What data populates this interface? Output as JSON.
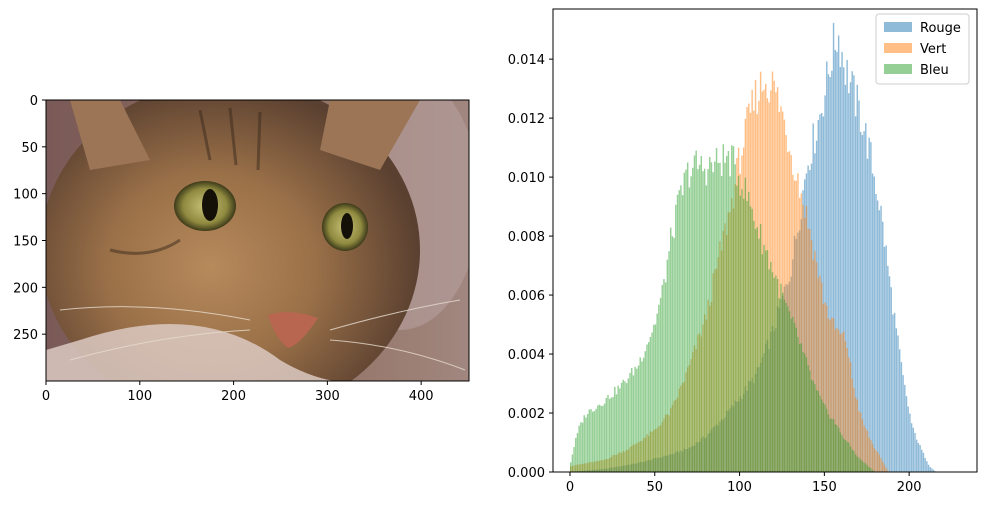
{
  "chart_data": [
    {
      "type": "image",
      "content": "photo of a tabby cat face",
      "xlim": [
        0,
        451
      ],
      "ylim": [
        300,
        0
      ],
      "xticks": [
        0,
        100,
        200,
        300,
        400
      ],
      "yticks": [
        0,
        50,
        100,
        150,
        200,
        250
      ]
    },
    {
      "type": "bar",
      "subtype": "histogram",
      "xlim": [
        -10,
        240
      ],
      "ylim": [
        0,
        0.0157
      ],
      "xticks": [
        0,
        50,
        100,
        150,
        200
      ],
      "yticks": [
        "0.000",
        "0.002",
        "0.004",
        "0.006",
        "0.008",
        "0.010",
        "0.012",
        "0.014"
      ],
      "legend_position": "top-right",
      "series": [
        {
          "name": "Rouge",
          "color": "#1f77b4",
          "alpha": 0.5,
          "control_points": [
            [
              0,
              0
            ],
            [
              20,
              0.0001
            ],
            [
              40,
              0.0003
            ],
            [
              60,
              0.0006
            ],
            [
              70,
              0.0008
            ],
            [
              80,
              0.0012
            ],
            [
              90,
              0.0018
            ],
            [
              100,
              0.0025
            ],
            [
              110,
              0.0033
            ],
            [
              120,
              0.0048
            ],
            [
              130,
              0.0068
            ],
            [
              135,
              0.0085
            ],
            [
              140,
              0.0105
            ],
            [
              145,
              0.0115
            ],
            [
              150,
              0.0128
            ],
            [
              155,
              0.0143
            ],
            [
              158,
              0.0149
            ],
            [
              162,
              0.0138
            ],
            [
              168,
              0.0127
            ],
            [
              173,
              0.0118
            ],
            [
              178,
              0.0105
            ],
            [
              183,
              0.009
            ],
            [
              187,
              0.0072
            ],
            [
              192,
              0.005
            ],
            [
              197,
              0.003
            ],
            [
              202,
              0.0015
            ],
            [
              207,
              0.0008
            ],
            [
              212,
              0.0002
            ],
            [
              216,
              0
            ]
          ]
        },
        {
          "name": "Vert",
          "color": "#ff7f0e",
          "alpha": 0.5,
          "control_points": [
            [
              0,
              0.0002
            ],
            [
              10,
              0.0003
            ],
            [
              20,
              0.0004
            ],
            [
              35,
              0.0008
            ],
            [
              50,
              0.0014
            ],
            [
              60,
              0.0021
            ],
            [
              70,
              0.0035
            ],
            [
              80,
              0.0052
            ],
            [
              90,
              0.0078
            ],
            [
              95,
              0.009
            ],
            [
              100,
              0.0106
            ],
            [
              105,
              0.0118
            ],
            [
              110,
              0.0128
            ],
            [
              115,
              0.0133
            ],
            [
              120,
              0.0131
            ],
            [
              125,
              0.0122
            ],
            [
              130,
              0.011
            ],
            [
              135,
              0.0098
            ],
            [
              140,
              0.0086
            ],
            [
              145,
              0.0072
            ],
            [
              150,
              0.0058
            ],
            [
              155,
              0.005
            ],
            [
              160,
              0.0046
            ],
            [
              163,
              0.0045
            ],
            [
              167,
              0.003
            ],
            [
              172,
              0.0018
            ],
            [
              178,
              0.001
            ],
            [
              185,
              0.0003
            ],
            [
              188,
              0
            ]
          ]
        },
        {
          "name": "Bleu",
          "color": "#2ca02c",
          "alpha": 0.5,
          "control_points": [
            [
              0,
              0.0002
            ],
            [
              3,
              0.001
            ],
            [
              6,
              0.0016
            ],
            [
              10,
              0.002
            ],
            [
              20,
              0.0024
            ],
            [
              30,
              0.0029
            ],
            [
              40,
              0.0036
            ],
            [
              50,
              0.005
            ],
            [
              55,
              0.0062
            ],
            [
              60,
              0.008
            ],
            [
              65,
              0.0093
            ],
            [
              70,
              0.0102
            ],
            [
              75,
              0.0104
            ],
            [
              80,
              0.0103
            ],
            [
              85,
              0.0104
            ],
            [
              90,
              0.0106
            ],
            [
              95,
              0.0106
            ],
            [
              100,
              0.01
            ],
            [
              105,
              0.0093
            ],
            [
              110,
              0.0084
            ],
            [
              115,
              0.0076
            ],
            [
              120,
              0.0068
            ],
            [
              125,
              0.006
            ],
            [
              130,
              0.0052
            ],
            [
              135,
              0.0045
            ],
            [
              140,
              0.0036
            ],
            [
              145,
              0.0028
            ],
            [
              150,
              0.0022
            ],
            [
              155,
              0.0018
            ],
            [
              160,
              0.0013
            ],
            [
              165,
              0.0009
            ],
            [
              170,
              0.0005
            ],
            [
              176,
              0.0002
            ],
            [
              180,
              0
            ]
          ]
        }
      ]
    }
  ],
  "legend": {
    "entries": [
      {
        "label": "Rouge",
        "color": "#1f77b4"
      },
      {
        "label": "Vert",
        "color": "#ff7f0e"
      },
      {
        "label": "Bleu",
        "color": "#2ca02c"
      }
    ]
  }
}
